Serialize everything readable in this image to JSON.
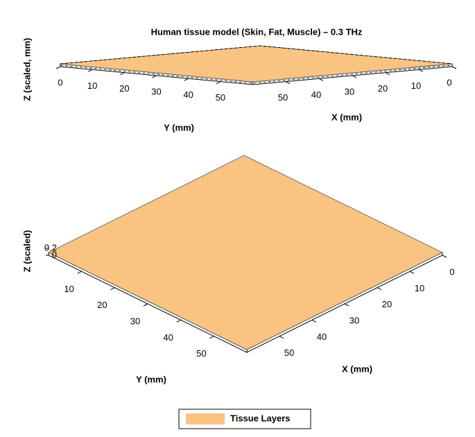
{
  "chart_data": [
    {
      "type": "slab3d",
      "title": "Human tissue model (Skin, Fat, Muscle) – 0.3 THz",
      "xlabel": "X (mm)",
      "ylabel": "Y (mm)",
      "zlabel": "Z (scaled, mm)",
      "xlim": [
        0,
        60
      ],
      "ylim": [
        0,
        60
      ],
      "xticks": [
        0,
        10,
        20,
        30,
        40,
        50
      ],
      "yticks": [
        0,
        10,
        20,
        30,
        40,
        50
      ],
      "series": [
        {
          "name": "Tissue Layers",
          "color": "#f9c382"
        }
      ]
    },
    {
      "type": "slab3d",
      "xlabel": "X (mm)",
      "ylabel": "Y (mm)",
      "zlabel": "Z (scaled)",
      "xlim": [
        0,
        60
      ],
      "ylim": [
        0,
        60
      ],
      "zlim": [
        0,
        0.2
      ],
      "xticks": [
        0,
        10,
        20,
        30,
        40,
        50
      ],
      "yticks": [
        10,
        20,
        30,
        40,
        50
      ],
      "zticks": [
        0,
        0.2
      ],
      "series": [
        {
          "name": "Tissue Layers",
          "color": "#f9c382"
        }
      ],
      "legend": "bottom"
    }
  ]
}
